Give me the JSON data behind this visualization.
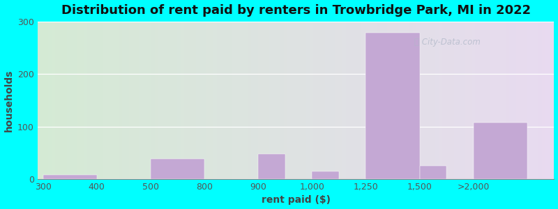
{
  "title": "Distribution of rent paid by renters in Trowbridge Park, MI in 2022",
  "xlabel": "rent paid ($)",
  "ylabel": "households",
  "bar_color": "#c4a8d4",
  "background_color": "#00ffff",
  "tick_labels": [
    "300",
    "400",
    "500",
    "800",
    "900",
    "1,000",
    "1,250",
    "1,500",
    ">2,000"
  ],
  "tick_positions": [
    0,
    1,
    2,
    3,
    4,
    5,
    6,
    7,
    8
  ],
  "bar_lefts": [
    0,
    1,
    2,
    3,
    4,
    5,
    6,
    7,
    8
  ],
  "bar_widths": [
    1,
    1,
    1,
    1,
    0.5,
    0.5,
    1,
    0.5,
    1
  ],
  "values": [
    8,
    0,
    38,
    0,
    48,
    15,
    278,
    25,
    108
  ],
  "ylim": [
    0,
    300
  ],
  "yticks": [
    0,
    100,
    200,
    300
  ],
  "title_fontsize": 13,
  "axis_label_fontsize": 10,
  "tick_fontsize": 9,
  "figsize": [
    8.0,
    3.0
  ],
  "dpi": 100
}
